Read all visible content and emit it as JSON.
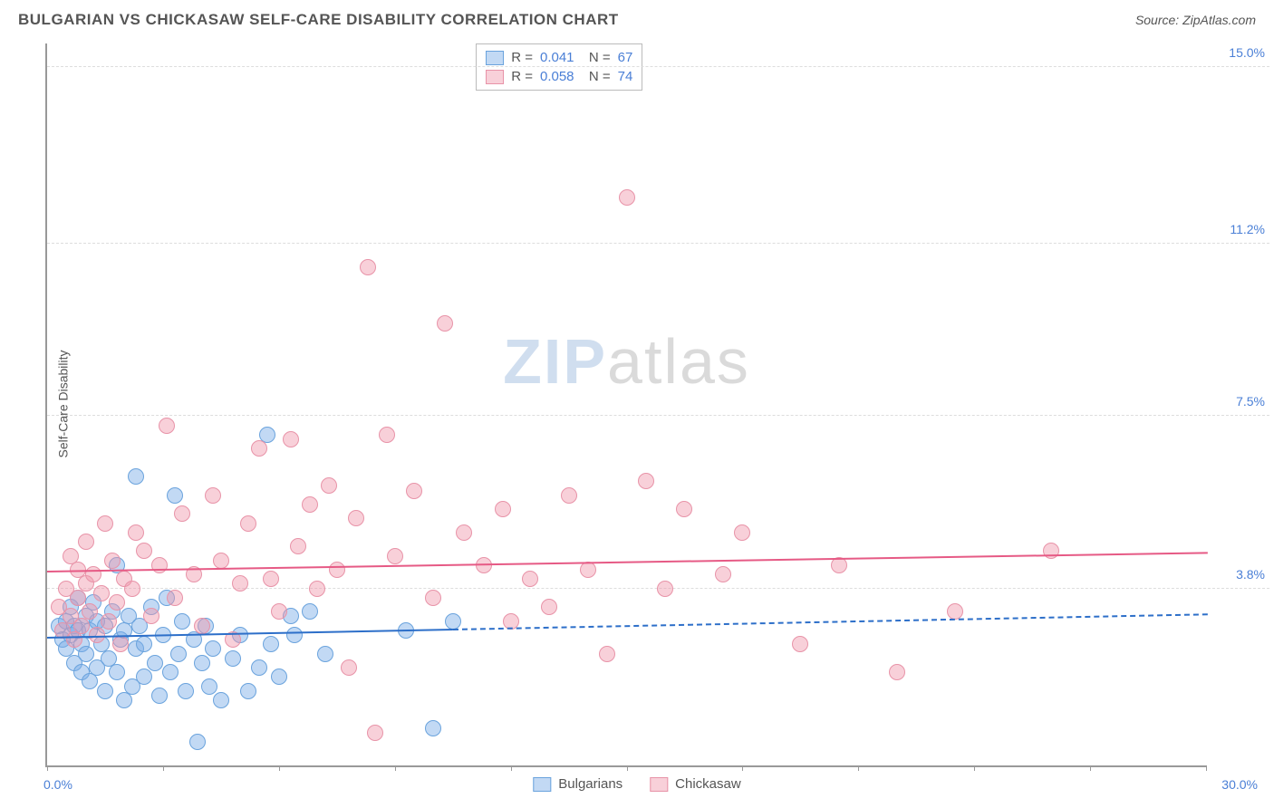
{
  "title": "BULGARIAN VS CHICKASAW SELF-CARE DISABILITY CORRELATION CHART",
  "source": "Source: ZipAtlas.com",
  "y_axis_label": "Self-Care Disability",
  "x_range": [
    0,
    30
  ],
  "y_range": [
    0,
    15.5
  ],
  "x_min_label": "0.0%",
  "x_max_label": "30.0%",
  "y_ticks": [
    {
      "value": 3.8,
      "label": "3.8%"
    },
    {
      "value": 7.5,
      "label": "7.5%"
    },
    {
      "value": 11.2,
      "label": "11.2%"
    },
    {
      "value": 15.0,
      "label": "15.0%"
    }
  ],
  "x_tick_positions": [
    0,
    3,
    6,
    9,
    12,
    15,
    18,
    21,
    24,
    27,
    30
  ],
  "watermark": {
    "zip": "ZIP",
    "atlas": "atlas"
  },
  "series": [
    {
      "name": "Bulgarians",
      "fill": "rgba(120,170,230,0.45)",
      "stroke": "#6aa3dd",
      "line_color": "#2d6fc9",
      "R": "0.041",
      "N": "67",
      "regression": {
        "x1": 0,
        "y1": 2.8,
        "x2": 30,
        "y2": 3.3,
        "solid_until_x": 10.5
      },
      "points": [
        [
          0.3,
          3.0
        ],
        [
          0.4,
          2.7
        ],
        [
          0.5,
          2.5
        ],
        [
          0.5,
          3.1
        ],
        [
          0.6,
          2.8
        ],
        [
          0.6,
          3.4
        ],
        [
          0.7,
          2.2
        ],
        [
          0.7,
          3.0
        ],
        [
          0.8,
          2.9
        ],
        [
          0.8,
          3.6
        ],
        [
          0.9,
          2.0
        ],
        [
          0.9,
          2.6
        ],
        [
          1.0,
          3.2
        ],
        [
          1.0,
          2.4
        ],
        [
          1.1,
          1.8
        ],
        [
          1.1,
          2.9
        ],
        [
          1.2,
          3.5
        ],
        [
          1.3,
          2.1
        ],
        [
          1.3,
          3.1
        ],
        [
          1.4,
          2.6
        ],
        [
          1.5,
          1.6
        ],
        [
          1.5,
          3.0
        ],
        [
          1.6,
          2.3
        ],
        [
          1.7,
          3.3
        ],
        [
          1.8,
          4.3
        ],
        [
          1.8,
          2.0
        ],
        [
          1.9,
          2.7
        ],
        [
          2.0,
          1.4
        ],
        [
          2.0,
          2.9
        ],
        [
          2.1,
          3.2
        ],
        [
          2.2,
          1.7
        ],
        [
          2.3,
          2.5
        ],
        [
          2.3,
          6.2
        ],
        [
          2.4,
          3.0
        ],
        [
          2.5,
          1.9
        ],
        [
          2.5,
          2.6
        ],
        [
          2.7,
          3.4
        ],
        [
          2.8,
          2.2
        ],
        [
          2.9,
          1.5
        ],
        [
          3.0,
          2.8
        ],
        [
          3.1,
          3.6
        ],
        [
          3.2,
          2.0
        ],
        [
          3.3,
          5.8
        ],
        [
          3.4,
          2.4
        ],
        [
          3.5,
          3.1
        ],
        [
          3.6,
          1.6
        ],
        [
          3.8,
          2.7
        ],
        [
          3.9,
          0.5
        ],
        [
          4.0,
          2.2
        ],
        [
          4.1,
          3.0
        ],
        [
          4.2,
          1.7
        ],
        [
          4.3,
          2.5
        ],
        [
          4.5,
          1.4
        ],
        [
          4.8,
          2.3
        ],
        [
          5.0,
          2.8
        ],
        [
          5.2,
          1.6
        ],
        [
          5.5,
          2.1
        ],
        [
          5.7,
          7.1
        ],
        [
          5.8,
          2.6
        ],
        [
          6.0,
          1.9
        ],
        [
          6.3,
          3.2
        ],
        [
          6.4,
          2.8
        ],
        [
          6.8,
          3.3
        ],
        [
          7.2,
          2.4
        ],
        [
          9.3,
          2.9
        ],
        [
          10.0,
          0.8
        ],
        [
          10.5,
          3.1
        ]
      ]
    },
    {
      "name": "Chickasaw",
      "fill": "rgba(240,150,170,0.45)",
      "stroke": "#e893a8",
      "line_color": "#e65a85",
      "R": "0.058",
      "N": "74",
      "regression": {
        "x1": 0,
        "y1": 4.2,
        "x2": 30,
        "y2": 4.6,
        "solid_until_x": 30
      },
      "points": [
        [
          0.3,
          3.4
        ],
        [
          0.4,
          2.9
        ],
        [
          0.5,
          3.8
        ],
        [
          0.6,
          3.2
        ],
        [
          0.6,
          4.5
        ],
        [
          0.7,
          2.7
        ],
        [
          0.8,
          3.6
        ],
        [
          0.8,
          4.2
        ],
        [
          0.9,
          3.0
        ],
        [
          1.0,
          3.9
        ],
        [
          1.0,
          4.8
        ],
        [
          1.1,
          3.3
        ],
        [
          1.2,
          4.1
        ],
        [
          1.3,
          2.8
        ],
        [
          1.4,
          3.7
        ],
        [
          1.5,
          5.2
        ],
        [
          1.6,
          3.1
        ],
        [
          1.7,
          4.4
        ],
        [
          1.8,
          3.5
        ],
        [
          1.9,
          2.6
        ],
        [
          2.0,
          4.0
        ],
        [
          2.2,
          3.8
        ],
        [
          2.3,
          5.0
        ],
        [
          2.5,
          4.6
        ],
        [
          2.7,
          3.2
        ],
        [
          2.9,
          4.3
        ],
        [
          3.1,
          7.3
        ],
        [
          3.3,
          3.6
        ],
        [
          3.5,
          5.4
        ],
        [
          3.8,
          4.1
        ],
        [
          4.0,
          3.0
        ],
        [
          4.3,
          5.8
        ],
        [
          4.5,
          4.4
        ],
        [
          4.8,
          2.7
        ],
        [
          5.0,
          3.9
        ],
        [
          5.2,
          5.2
        ],
        [
          5.5,
          6.8
        ],
        [
          5.8,
          4.0
        ],
        [
          6.0,
          3.3
        ],
        [
          6.3,
          7.0
        ],
        [
          6.5,
          4.7
        ],
        [
          6.8,
          5.6
        ],
        [
          7.0,
          3.8
        ],
        [
          7.3,
          6.0
        ],
        [
          7.5,
          4.2
        ],
        [
          7.8,
          2.1
        ],
        [
          8.0,
          5.3
        ],
        [
          8.3,
          10.7
        ],
        [
          8.5,
          0.7
        ],
        [
          8.8,
          7.1
        ],
        [
          9.0,
          4.5
        ],
        [
          9.5,
          5.9
        ],
        [
          10.0,
          3.6
        ],
        [
          10.3,
          9.5
        ],
        [
          10.8,
          5.0
        ],
        [
          11.3,
          4.3
        ],
        [
          11.8,
          5.5
        ],
        [
          12.0,
          3.1
        ],
        [
          12.5,
          4.0
        ],
        [
          13.0,
          3.4
        ],
        [
          13.5,
          5.8
        ],
        [
          14.0,
          4.2
        ],
        [
          14.5,
          2.4
        ],
        [
          15.0,
          12.2
        ],
        [
          15.5,
          6.1
        ],
        [
          16.0,
          3.8
        ],
        [
          16.5,
          5.5
        ],
        [
          17.5,
          4.1
        ],
        [
          18.0,
          5.0
        ],
        [
          19.5,
          2.6
        ],
        [
          20.5,
          4.3
        ],
        [
          22.0,
          2.0
        ],
        [
          23.5,
          3.3
        ],
        [
          26.0,
          4.6
        ]
      ]
    }
  ],
  "point_radius": 9,
  "bottom_legend": [
    {
      "label": "Bulgarians",
      "series": 0
    },
    {
      "label": "Chickasaw",
      "series": 1
    }
  ]
}
